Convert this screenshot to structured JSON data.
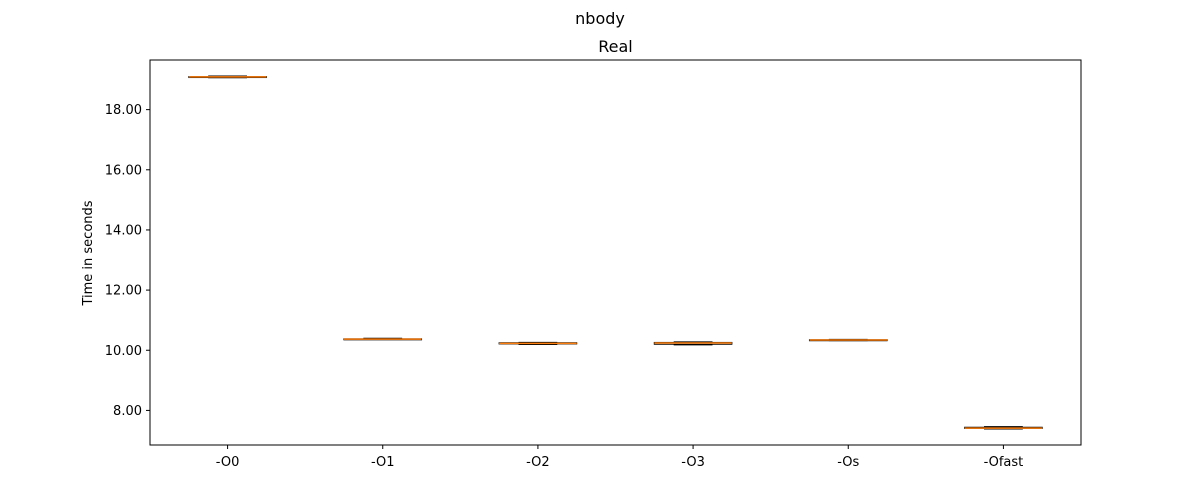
{
  "figure": {
    "suptitle": "nbody"
  },
  "chart_data": {
    "type": "box",
    "title": "Real",
    "xlabel": "",
    "ylabel": "Time in seconds",
    "ylim": [
      6.85,
      19.65
    ],
    "yticks": [
      8.0,
      10.0,
      12.0,
      14.0,
      16.0,
      18.0
    ],
    "ytick_labels": [
      "8.00",
      "10.00",
      "12.00",
      "14.00",
      "16.00",
      "18.00"
    ],
    "grid": false,
    "categories": [
      "-O0",
      "-O1",
      "-O2",
      "-O3",
      "-Os",
      "-Ofast"
    ],
    "boxes": [
      {
        "label": "-O0",
        "whislo": 19.06,
        "q1": 19.08,
        "median": 19.09,
        "q3": 19.1,
        "whishi": 19.12
      },
      {
        "label": "-O1",
        "whislo": 10.36,
        "q1": 10.37,
        "median": 10.37,
        "q3": 10.38,
        "whishi": 10.4
      },
      {
        "label": "-O2",
        "whislo": 10.19,
        "q1": 10.21,
        "median": 10.23,
        "q3": 10.25,
        "whishi": 10.26
      },
      {
        "label": "-O3",
        "whislo": 10.18,
        "q1": 10.2,
        "median": 10.24,
        "q3": 10.26,
        "whishi": 10.28
      },
      {
        "label": "-Os",
        "whislo": 10.32,
        "q1": 10.33,
        "median": 10.34,
        "q3": 10.35,
        "whishi": 10.36
      },
      {
        "label": "-Ofast",
        "whislo": 7.38,
        "q1": 7.4,
        "median": 7.41,
        "q3": 7.44,
        "whishi": 7.46
      }
    ],
    "colors": {
      "box": "#000000",
      "median": "#ff7f0e",
      "axes": "#000000"
    }
  }
}
